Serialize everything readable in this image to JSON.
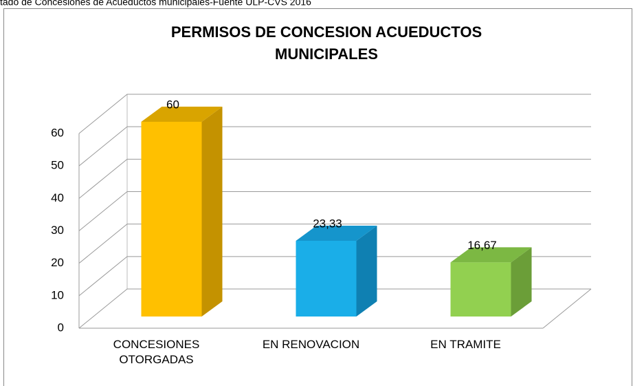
{
  "caption": "tado de Concesiones de Acueductos municipales-Fuente ULP-CVS 2016",
  "chart_data": {
    "type": "bar3d",
    "title": [
      "PERMISOS DE CONCESION ACUEDUCTOS",
      "MUNICIPALES"
    ],
    "categories": [
      "CONCESIONES OTORGADAS",
      "EN RENOVACION",
      "EN TRAMITE"
    ],
    "values": [
      60,
      23.33,
      16.67
    ],
    "value_labels": [
      "60",
      "23,33",
      "16,67"
    ],
    "colors": [
      "#ffc000",
      "#1aaee8",
      "#92d050"
    ],
    "side_colors": [
      "#c49200",
      "#0f80b2",
      "#6b9e38"
    ],
    "top_colors": [
      "#d9a400",
      "#1595cc",
      "#7cb843"
    ],
    "ylim": [
      0,
      60
    ],
    "yticks": [
      0,
      10,
      20,
      30,
      40,
      50,
      60
    ],
    "grid": true
  }
}
